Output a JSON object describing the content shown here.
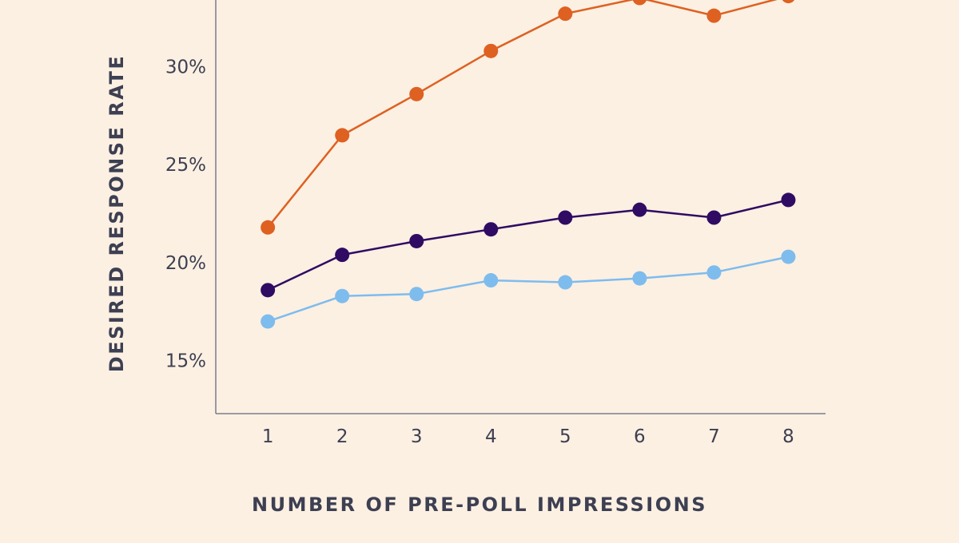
{
  "chart_data": {
    "type": "line",
    "xlabel": "NUMBER OF PRE-POLL IMPRESSIONS",
    "ylabel": "DESIRED RESPONSE RATE",
    "x": [
      1,
      2,
      3,
      4,
      5,
      6,
      7,
      8
    ],
    "x_tick_labels": [
      "1",
      "2",
      "3",
      "4",
      "5",
      "6",
      "7",
      "8"
    ],
    "y_ticks": [
      15,
      20,
      25,
      30
    ],
    "y_tick_labels": [
      "15%",
      "20%",
      "25%",
      "30%"
    ],
    "ylim": [
      12.3,
      33.4
    ],
    "xlim": [
      0.3,
      8.5
    ],
    "grid": false,
    "legend": "none",
    "series": [
      {
        "color": "#de6122",
        "values": [
          21.8,
          26.5,
          28.6,
          30.8,
          32.7,
          33.5,
          32.6,
          33.6
        ]
      },
      {
        "color": "#2f0b63",
        "values": [
          18.6,
          20.4,
          21.1,
          21.7,
          22.3,
          22.7,
          22.3,
          23.2
        ]
      },
      {
        "color": "#7ebcee",
        "values": [
          17.0,
          18.3,
          18.4,
          19.1,
          19.0,
          19.2,
          19.5,
          20.3
        ]
      }
    ]
  }
}
